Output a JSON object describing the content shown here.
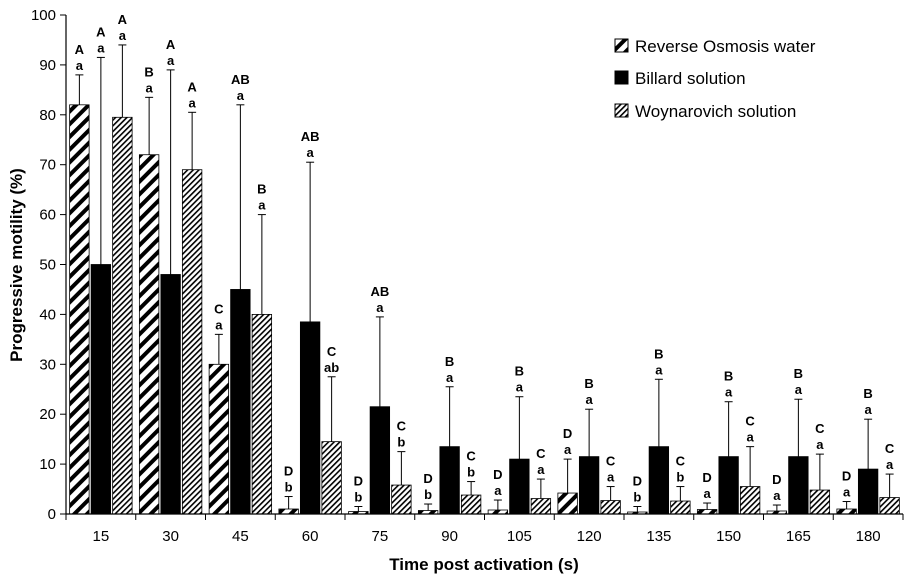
{
  "chart_data": {
    "type": "bar",
    "title": "",
    "xlabel": "Time post activation (s)",
    "ylabel": "Progressive motility (%)",
    "ylim": [
      0,
      100
    ],
    "yticks": [
      "0",
      "10",
      "20",
      "30",
      "40",
      "50",
      "60",
      "70",
      "80",
      "90",
      "100"
    ],
    "categories": [
      "15",
      "30",
      "45",
      "60",
      "75",
      "90",
      "105",
      "120",
      "135",
      "150",
      "165",
      "180"
    ],
    "legend_position": "top-right",
    "grid": false,
    "series": [
      {
        "name": "Reverse Osmosis water",
        "pattern": "wide-diagonal-hatch",
        "values": [
          82,
          72,
          30,
          1,
          0.5,
          0.7,
          0.8,
          4.2,
          0.4,
          0.9,
          0.6,
          1.0
        ],
        "error": [
          88,
          83.5,
          36,
          3.5,
          1.5,
          2,
          2.8,
          11,
          1.5,
          2.2,
          1.8,
          2.5
        ],
        "sig_upper": [
          "A",
          "B",
          "C",
          "D",
          "D",
          "D",
          "D",
          "D",
          "D",
          "D",
          "D",
          "D"
        ],
        "sig_lower": [
          "a",
          "a",
          "a",
          "b",
          "b",
          "b",
          "a",
          "a",
          "b",
          "a",
          "a",
          "a"
        ]
      },
      {
        "name": "Billard solution",
        "pattern": "solid-black",
        "values": [
          50,
          48,
          45,
          38.5,
          21.5,
          13.5,
          11,
          11.5,
          13.5,
          11.5,
          11.5,
          9
        ],
        "error": [
          91.5,
          89,
          82,
          70.5,
          39.5,
          25.5,
          23.5,
          21,
          27,
          22.5,
          23,
          19
        ],
        "sig_upper": [
          "A",
          "A",
          "AB",
          "AB",
          "AB",
          "B",
          "B",
          "B",
          "B",
          "B",
          "B",
          "B"
        ],
        "sig_lower": [
          "a",
          "a",
          "a",
          "a",
          "a",
          "a",
          "a",
          "a",
          "a",
          "a",
          "a",
          "a"
        ]
      },
      {
        "name": "Woynarovich solution",
        "pattern": "dense-diagonal-hatch",
        "values": [
          79.5,
          69,
          40,
          14.5,
          5.8,
          3.8,
          3.1,
          2.7,
          2.6,
          5.5,
          4.8,
          3.3
        ],
        "error": [
          94,
          80.5,
          60,
          27.5,
          12.5,
          6.5,
          7,
          5.5,
          5.5,
          13.5,
          12,
          8
        ],
        "sig_upper": [
          "A",
          "A",
          "B",
          "C",
          "C",
          "C",
          "C",
          "C",
          "C",
          "C",
          "C",
          "C"
        ],
        "sig_lower": [
          "a",
          "a",
          "a",
          "ab",
          "b",
          "b",
          "a",
          "a",
          "b",
          "a",
          "a",
          "a"
        ]
      }
    ]
  }
}
